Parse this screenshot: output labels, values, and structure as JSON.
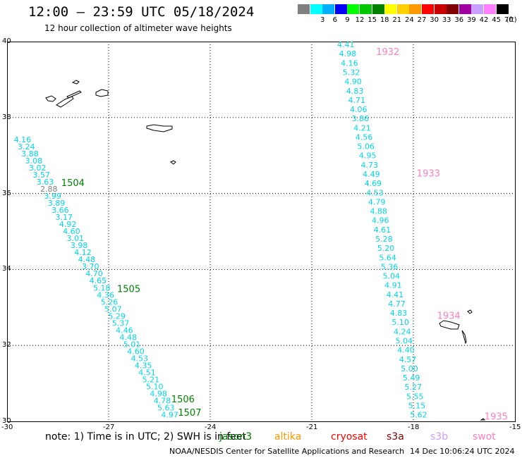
{
  "header": {
    "title": "12:00 – 23:59 UTC 05/18/2024",
    "subtitle": "12 hour collection of altimeter wave heights"
  },
  "legend": {
    "unit": "(ft)",
    "items": [
      {
        "color": "#808080",
        "label": ""
      },
      {
        "color": "#00ffff",
        "label": "3"
      },
      {
        "color": "#00b0ff",
        "label": "6"
      },
      {
        "color": "#0000ff",
        "label": "9"
      },
      {
        "color": "#00ff00",
        "label": "12"
      },
      {
        "color": "#00c800",
        "label": "15"
      },
      {
        "color": "#008000",
        "label": "18"
      },
      {
        "color": "#ffff00",
        "label": "21"
      },
      {
        "color": "#ffd000",
        "label": "24"
      },
      {
        "color": "#ff9900",
        "label": "27"
      },
      {
        "color": "#ff0000",
        "label": "30"
      },
      {
        "color": "#c80000",
        "label": "33"
      },
      {
        "color": "#800000",
        "label": "36"
      },
      {
        "color": "#a000a0",
        "label": "39"
      },
      {
        "color": "#c8a0ff",
        "label": "42"
      },
      {
        "color": "#ff80ff",
        "label": "45"
      },
      {
        "color": "#000000",
        "label": "70"
      }
    ]
  },
  "map": {
    "lon_range": [
      -30,
      -15
    ],
    "lat_range": [
      30,
      40
    ],
    "x_ticks": [
      "-30",
      "-27",
      "-24",
      "-21",
      "-18",
      "-15"
    ],
    "y_ticks": [
      "40",
      "38",
      "36",
      "34",
      "32",
      "30"
    ],
    "grid": true,
    "passes": [
      {
        "label": "1932",
        "color": "#ff80c0",
        "lon": -19.1,
        "lat": 39.65
      },
      {
        "label": "1933",
        "color": "#ff80c0",
        "lon": -17.9,
        "lat": 36.45
      },
      {
        "label": "1934",
        "color": "#ff80c0",
        "lon": -17.3,
        "lat": 32.7
      },
      {
        "label": "1935",
        "color": "#ff80c0",
        "lon": -15.9,
        "lat": 30.05
      },
      {
        "label": "1504",
        "color": "#008000",
        "lon": -28.4,
        "lat": 36.2
      },
      {
        "label": "1505",
        "color": "#008000",
        "lon": -26.75,
        "lat": 33.4
      },
      {
        "label": "1506",
        "color": "#008000",
        "lon": -25.15,
        "lat": 30.5
      },
      {
        "label": "1507",
        "color": "#008000",
        "lon": -24.95,
        "lat": 30.15
      }
    ],
    "track_west": {
      "start": [
        -29.8,
        37.35
      ],
      "end": [
        -25.45,
        30.1
      ],
      "values": [
        "4.16",
        "3.24",
        "3.88",
        "3.08",
        "3.02",
        "3.57",
        "3.63",
        "2.88",
        "3.99",
        "3.89",
        "3.66",
        "3.17",
        "4.92",
        "4.60",
        "3.01",
        "3.98",
        "4.12",
        "4.48",
        "3.70",
        "4.70",
        "4.65",
        "5.18",
        "4.36",
        "5.26",
        "5.07",
        "5.29",
        "5.37",
        "4.46",
        "4.48",
        "5.01",
        "4.60",
        "4.53",
        "4.35",
        "4.51",
        "5.21",
        "5.10",
        "4.98",
        "4.78",
        "5.63",
        "4.97"
      ]
    },
    "track_east": {
      "start": [
        -20.25,
        39.85
      ],
      "end": [
        -18.1,
        30.1
      ],
      "values": [
        "4.41",
        "4.98",
        "4.16",
        "5.32",
        "4.90",
        "4.83",
        "4.71",
        "4.06",
        "3.86",
        "4.21",
        "4.56",
        "5.06",
        "4.95",
        "4.73",
        "4.49",
        "4.69",
        "4.53",
        "4.79",
        "4.88",
        "4.96",
        "4.61",
        "5.28",
        "5.20",
        "5.64",
        "5.36",
        "5.04",
        "4.91",
        "4.41",
        "4.77",
        "4.83",
        "5.10",
        "4.24",
        "5.04",
        "4.40",
        "4.57",
        "5.00",
        "5.49",
        "5.27",
        "5.55",
        "5.15",
        "5.62"
      ]
    }
  },
  "note": {
    "text": "note: 1) Time is in UTC; 2) SWH is in feet",
    "satellites": [
      {
        "name": "jason3",
        "color": "#008000"
      },
      {
        "name": "altika",
        "color": "#ff9900"
      },
      {
        "name": "cryosat",
        "color": "#ff0000"
      },
      {
        "name": "s3a",
        "color": "#800000"
      },
      {
        "name": "s3b",
        "color": "#c8a0ff"
      },
      {
        "name": "swot",
        "color": "#ff80c0"
      }
    ]
  },
  "footer": {
    "org": "NOAA/NESDIS Center for Satellite Applications and Research",
    "timestamp": "14 Dec 10:06:24 UTC 2024"
  }
}
